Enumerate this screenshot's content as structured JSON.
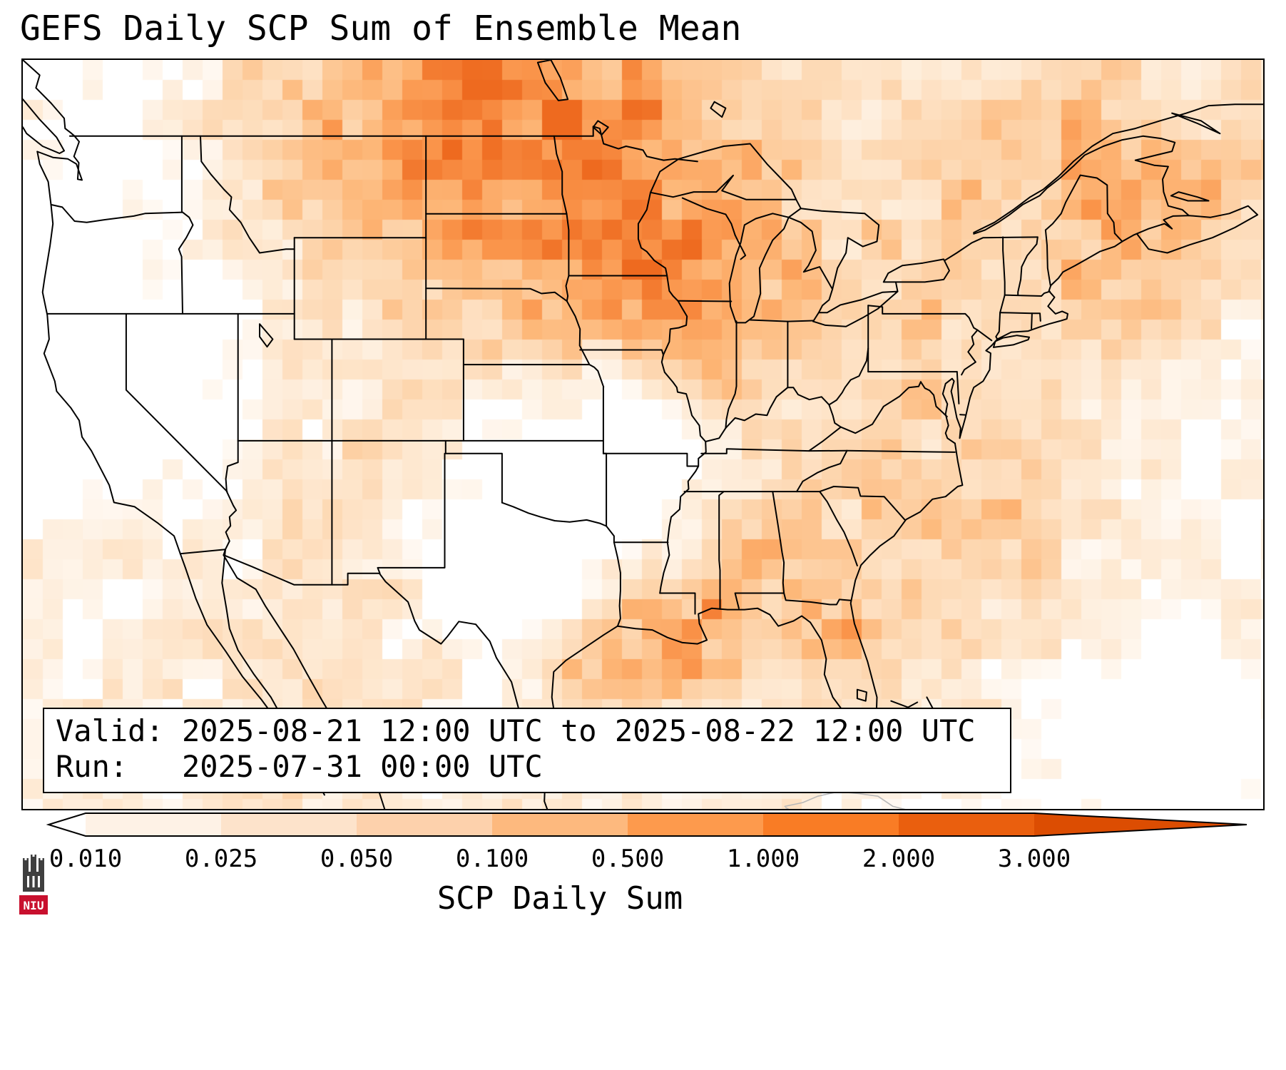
{
  "title": "GEFS Daily SCP Sum of Ensemble Mean",
  "map": {
    "info_box": {
      "valid_line": "Valid: 2025-08-21 12:00 UTC to 2025-08-22 12:00 UTC",
      "run_line": "Run:   2025-07-31 00:00 UTC"
    },
    "background_color": "#ffffff",
    "border_line_color": "#000000",
    "foreign_coast_color": "#b8b8b8",
    "colormap_stops": [
      [
        0.0,
        255,
        255,
        255
      ],
      [
        0.28,
        254,
        232,
        208
      ],
      [
        0.5,
        253,
        212,
        171
      ],
      [
        0.68,
        253,
        183,
        120
      ],
      [
        0.84,
        250,
        148,
        74
      ],
      [
        1.0,
        238,
        106,
        31
      ]
    ]
  },
  "colorbar": {
    "label": "SCP Daily Sum",
    "ticks": [
      "0.010",
      "0.025",
      "0.050",
      "0.100",
      "0.500",
      "1.000",
      "2.000",
      "3.000"
    ],
    "segment_colors": [
      "#fef2e6",
      "#fde3cb",
      "#fdd1ac",
      "#fdb97e",
      "#fd9a4d",
      "#f97c25",
      "#ea5f0e"
    ],
    "left_arrow_color": "#ffffff",
    "right_arrow_color": "#dc4d02"
  },
  "logo": {
    "text": "NIU",
    "red": "#c8102e",
    "dark": "#3f3f3f"
  }
}
